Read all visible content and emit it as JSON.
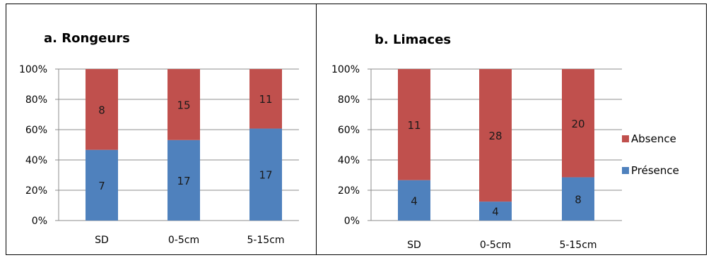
{
  "colors": {
    "absence": "#c0504d",
    "presence": "#4f81bd",
    "gridline": "#8c8c8c",
    "axis": "#8c8c8c",
    "frame": "#000000"
  },
  "legend": {
    "placement": "right",
    "entries": [
      {
        "name": "Absence",
        "color": "#c0504d"
      },
      {
        "name": "Présence",
        "color": "#4f81bd"
      }
    ]
  },
  "chart_data": [
    {
      "type": "bar",
      "stacked": "percent",
      "title": "a. Rongeurs",
      "categories": [
        "SD",
        "0-5cm",
        "5-15cm"
      ],
      "y_ticks": [
        "0%",
        "20%",
        "40%",
        "60%",
        "80%",
        "100%"
      ],
      "ylim": [
        0,
        100
      ],
      "grid": true,
      "series": [
        {
          "name": "Présence",
          "values": [
            7,
            17,
            17
          ]
        },
        {
          "name": "Absence",
          "values": [
            8,
            15,
            11
          ]
        }
      ]
    },
    {
      "type": "bar",
      "stacked": "percent",
      "title": "b. Limaces",
      "categories": [
        "SD",
        "0-5cm",
        "5-15cm"
      ],
      "y_ticks": [
        "0%",
        "20%",
        "40%",
        "60%",
        "80%",
        "100%"
      ],
      "ylim": [
        0,
        100
      ],
      "grid": true,
      "series": [
        {
          "name": "Présence",
          "values": [
            4,
            4,
            8
          ]
        },
        {
          "name": "Absence",
          "values": [
            11,
            28,
            20
          ]
        }
      ]
    }
  ]
}
